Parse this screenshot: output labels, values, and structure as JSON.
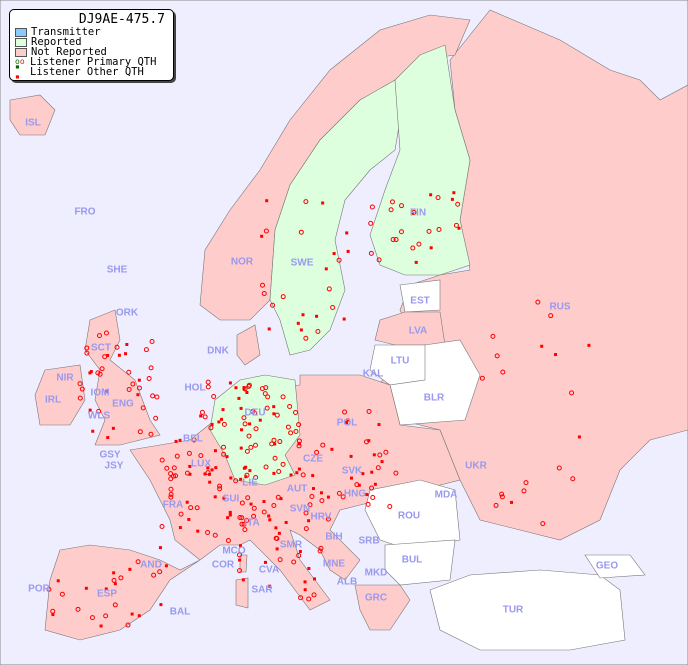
{
  "legend": {
    "title": "DJ9AE-475.7",
    "items": [
      {
        "label": "Transmitter",
        "color": "#88ccff"
      },
      {
        "label": "Reported",
        "color": "#ddffdd"
      },
      {
        "label": "Not Reported",
        "color": "#ffcccc"
      },
      {
        "label": "Listener Primary QTH",
        "colors": [
          "#006600",
          "#ff0000"
        ]
      },
      {
        "label": "Listener Other QTH",
        "colors": [
          "#006600",
          "#ff0000"
        ]
      }
    ]
  },
  "colors": {
    "sea": "#eeeeff",
    "reported": "#ddffdd",
    "not_reported": "#ffcccc",
    "no_data": "#ffffff",
    "listener": "#ff0000"
  },
  "countries": [
    "ISL",
    "FRO",
    "SHE",
    "NOR",
    "SWE",
    "FIN",
    "EST",
    "LVA",
    "LTU",
    "KAL",
    "RUS",
    "DNK",
    "ORK",
    "SCT",
    "NIR",
    "IRL",
    "IOM",
    "ENG",
    "WLS",
    "HOL",
    "BEL",
    "DEU",
    "POL",
    "BLR",
    "UKR",
    "GSY",
    "JSY",
    "LUX",
    "CZE",
    "SVK",
    "FRA",
    "SUI",
    "LIE",
    "AUT",
    "HNG",
    "MDA",
    "SVN",
    "HRV",
    "ROU",
    "ITA",
    "MCO",
    "COR",
    "BIH",
    "SRB",
    "SMR",
    "AND",
    "BUL",
    "GEO",
    "MNE",
    "CVA",
    "MKD",
    "ALB",
    "POR",
    "ESP",
    "SAR",
    "GRC",
    "TUR",
    "BAL"
  ]
}
